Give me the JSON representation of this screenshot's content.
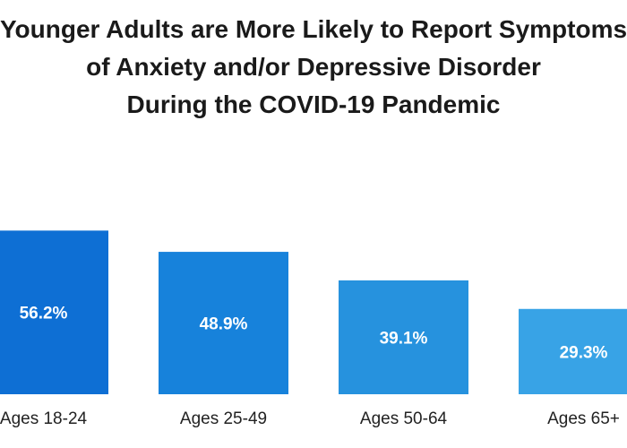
{
  "chart_data": {
    "type": "bar",
    "title": [
      "Younger Adults are More Likely to Report Symptoms",
      "of Anxiety and/or Depressive Disorder",
      "During the COVID-19 Pandemic"
    ],
    "categories": [
      "Ages 18-24",
      "Ages 25-49",
      "Ages 50-64",
      "Ages 65+"
    ],
    "values": [
      56.2,
      48.9,
      39.1,
      29.3
    ],
    "value_labels": [
      "56.2%",
      "48.9%",
      "39.1%",
      "29.3%"
    ],
    "xlabel": "",
    "ylabel": "",
    "ylim": [
      0,
      60
    ],
    "grid": false,
    "colors": [
      "#0e6fd4",
      "#1782db",
      "#2692de",
      "#38a3e6"
    ]
  }
}
